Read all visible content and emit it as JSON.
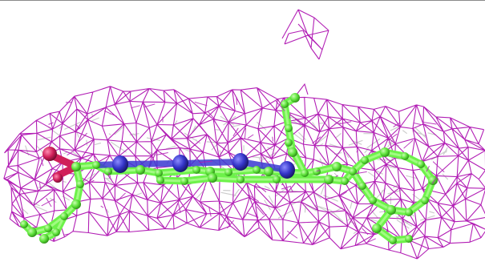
{
  "scene": {
    "background_color": "#ffffff",
    "colors": {
      "density_mesh": "#b21fb5",
      "ghost_mesh": "#c8c8c8",
      "carbon": "#6df24a",
      "nitrogen": "#3a3ad1",
      "oxygen": "#d0205a"
    },
    "components": [
      "electron-density-mesh",
      "secondary-model-mesh",
      "ligand-carbon-skeleton",
      "ligand-nitrogen-atoms",
      "ligand-oxygen-atoms"
    ]
  }
}
